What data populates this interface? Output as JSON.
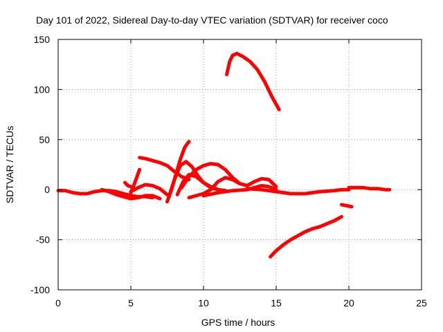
{
  "chart_data": {
    "type": "line",
    "title": "Day 101 of 2022, Sidereal Day-to-day VTEC variation (SDTVAR) for receiver coco",
    "xlabel": "GPS time / hours",
    "ylabel": "SDTVAR / TECUs",
    "xlim": [
      0,
      25
    ],
    "ylim": [
      -100,
      150
    ],
    "xticks": [
      "0",
      "5",
      "10",
      "15",
      "20",
      "25"
    ],
    "yticks": [
      "-100",
      "-50",
      "0",
      "50",
      "100",
      "150"
    ],
    "grid": true,
    "color": "#ff0000",
    "series": [
      {
        "name": "arc-baseline-early",
        "x": [
          0,
          0.5,
          1,
          1.5,
          2,
          2.5,
          3,
          3.5,
          4,
          4.5,
          5,
          5.5,
          6,
          6.5
        ],
        "y": [
          -1,
          -1,
          -3,
          -4,
          -4,
          -2,
          -1,
          -1,
          -2,
          -4,
          -6,
          -7,
          -7,
          -8
        ]
      },
      {
        "name": "arc-baseline-dip",
        "x": [
          3,
          3.5,
          4,
          4.5,
          5,
          5.5,
          6,
          6.5,
          7
        ],
        "y": [
          0,
          -2,
          -5,
          -7,
          -9,
          -8,
          -6,
          -6,
          -9
        ]
      },
      {
        "name": "arc-rise-to-20",
        "x": [
          5.0,
          5.2,
          5.4,
          5.6
        ],
        "y": [
          -3,
          4,
          12,
          20
        ]
      },
      {
        "name": "arc-small-spike",
        "x": [
          4.6,
          4.8,
          5.0
        ],
        "y": [
          7,
          4,
          3
        ]
      },
      {
        "name": "arc-32-hump",
        "x": [
          5.6,
          6,
          6.5,
          7,
          7.5,
          8,
          8.5,
          9
        ],
        "y": [
          32,
          31,
          29,
          27,
          24,
          18,
          13,
          10
        ]
      },
      {
        "name": "arc-bump-6h",
        "x": [
          5,
          5.5,
          6,
          6.5,
          7,
          7.5
        ],
        "y": [
          -2,
          2,
          5,
          4,
          1,
          -5
        ]
      },
      {
        "name": "arc-to-48",
        "x": [
          7.5,
          7.8,
          8.1,
          8.4,
          8.7,
          9.0
        ],
        "y": [
          -12,
          0,
          15,
          30,
          42,
          48
        ]
      },
      {
        "name": "arc-28-loop",
        "x": [
          7.6,
          8,
          8.4,
          8.8,
          9.2,
          9.6,
          10,
          10.5,
          11
        ],
        "y": [
          -8,
          10,
          24,
          28,
          23,
          14,
          7,
          2,
          0
        ]
      },
      {
        "name": "arc-cross-low",
        "x": [
          8.2,
          8.6,
          9,
          9.5,
          10,
          10.5,
          11,
          11.5
        ],
        "y": [
          -5,
          8,
          15,
          13,
          7,
          3,
          0,
          -1
        ]
      },
      {
        "name": "arc-26-hump",
        "x": [
          8.5,
          9,
          9.5,
          10,
          10.5,
          11,
          11.5,
          12,
          12.5,
          13
        ],
        "y": [
          2,
          13,
          20,
          24,
          26,
          25,
          20,
          12,
          6,
          4
        ]
      },
      {
        "name": "arc-12-bumps",
        "x": [
          9,
          9.5,
          10,
          10.5,
          11,
          11.5,
          12,
          12.5,
          13,
          13.5,
          14,
          14.5,
          15
        ],
        "y": [
          -8,
          -6,
          -4,
          0,
          8,
          12,
          10,
          6,
          4,
          8,
          11,
          10,
          3
        ]
      },
      {
        "name": "arc-late-high",
        "x": [
          11.6,
          11.8,
          12,
          12.3,
          12.7,
          13.2,
          13.7,
          14.2,
          14.7,
          15.2
        ],
        "y": [
          115,
          128,
          134,
          136,
          133,
          128,
          120,
          108,
          93,
          80
        ]
      },
      {
        "name": "arc-midday-flat",
        "x": [
          10,
          11,
          12,
          13,
          13.5,
          14,
          14.5,
          15
        ],
        "y": [
          -6,
          -3,
          -1,
          0,
          2,
          4,
          3,
          0
        ]
      },
      {
        "name": "arc-baseline-late",
        "x": [
          13,
          14,
          15,
          15.5,
          16,
          17,
          18,
          19,
          19.5,
          20
        ],
        "y": [
          1,
          0,
          -2,
          -3,
          -4,
          -4,
          -2,
          -1,
          0,
          0
        ]
      },
      {
        "name": "arc-baseline-end",
        "x": [
          20,
          20.5,
          21,
          21.5,
          22,
          22.5,
          22.8
        ],
        "y": [
          2,
          2,
          2,
          1,
          1,
          0,
          0
        ]
      },
      {
        "name": "arc-negative",
        "x": [
          14.6,
          15,
          15.5,
          16,
          16.5,
          17,
          17.5,
          18,
          18.5,
          19,
          19.5
        ],
        "y": [
          -67,
          -61,
          -55,
          -50,
          -46,
          -42,
          -39,
          -37,
          -34,
          -31,
          -27
        ]
      },
      {
        "name": "arc-late-short",
        "x": [
          19.5,
          20.2
        ],
        "y": [
          -15,
          -17
        ]
      }
    ]
  }
}
